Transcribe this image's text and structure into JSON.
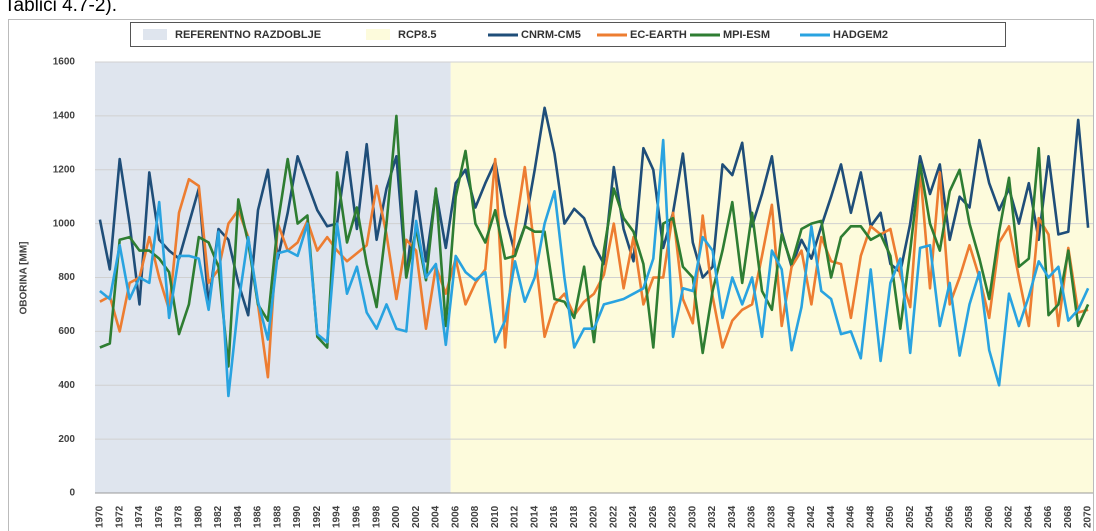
{
  "caption": "Tablici 4.7-2).",
  "chart_data": {
    "type": "line",
    "ylabel": "OBORINA [MM]",
    "ylim": [
      0,
      1600
    ],
    "yticks": [
      0,
      200,
      400,
      600,
      800,
      1000,
      1200,
      1400,
      1600
    ],
    "grid": true,
    "periods": [
      {
        "name": "REFERENTNO RAZDOBLJE",
        "color": "#dfe5ee",
        "span": [
          1970,
          2005
        ]
      },
      {
        "name": "RCP8.5",
        "color": "#fdfbdc",
        "span": [
          2006,
          2070
        ]
      }
    ],
    "categories": [
      "1970",
      null,
      "1972",
      null,
      "1974",
      null,
      "1976",
      null,
      "1978",
      null,
      "1980",
      null,
      "1982",
      null,
      "1984",
      null,
      "1986",
      null,
      "1988",
      null,
      "1990",
      null,
      "1992",
      null,
      "1994",
      null,
      "1996",
      null,
      "1998",
      null,
      "2000",
      null,
      "2002",
      null,
      "2004",
      null,
      "2006",
      null,
      "2008",
      null,
      "2010",
      null,
      "2012",
      null,
      "2014",
      null,
      "2016",
      null,
      "2018",
      null,
      "2020",
      null,
      "2022",
      null,
      "2024",
      null,
      "2026",
      null,
      "2028",
      null,
      "2030",
      null,
      "2032",
      null,
      "2034",
      null,
      "2036",
      null,
      "2038",
      null,
      "2040",
      null,
      "2042",
      null,
      "2044",
      null,
      "2046",
      null,
      "2048",
      null,
      "2050",
      null,
      "2052",
      null,
      "2054",
      null,
      "2056",
      null,
      "2058",
      null,
      "2060",
      null,
      "2062",
      null,
      "2064",
      null,
      "2066",
      null,
      "2068",
      null,
      "2070"
    ],
    "series": [
      {
        "name": "CNRM-CM5",
        "color": "#1f4e79",
        "values": [
          1015,
          830,
          1240,
          1000,
          700,
          1190,
          940,
          900,
          870,
          1000,
          1130,
          700,
          980,
          940,
          780,
          660,
          1050,
          1200,
          870,
          1040,
          1250,
          1150,
          1050,
          990,
          1000,
          1265,
          980,
          1295,
          940,
          1130,
          1250,
          800,
          1120,
          860,
          1120,
          910,
          1150,
          1200,
          1060,
          1150,
          1230,
          1030,
          890,
          990,
          1200,
          1430,
          1260,
          1000,
          1055,
          1020,
          920,
          850,
          1210,
          980,
          860,
          1280,
          1200,
          910,
          1040,
          1260,
          930,
          800,
          840,
          1220,
          1180,
          1300,
          990,
          1110,
          1250,
          970,
          840,
          940,
          870,
          990,
          1100,
          1220,
          1040,
          1190,
          990,
          1040,
          850,
          820,
          1000,
          1250,
          1110,
          1220,
          940,
          1100,
          1060,
          1310,
          1150,
          1050,
          1130,
          1000,
          1150,
          940,
          1250,
          960,
          970,
          1385,
          985
        ]
      },
      {
        "name": "EC-EARTH",
        "color": "#ed7d31",
        "values": [
          710,
          730,
          600,
          780,
          800,
          950,
          800,
          680,
          1040,
          1165,
          1140,
          780,
          830,
          1000,
          1050,
          950,
          700,
          430,
          1000,
          900,
          930,
          1010,
          900,
          950,
          900,
          860,
          890,
          920,
          1140,
          960,
          720,
          940,
          900,
          610,
          840,
          740,
          870,
          700,
          780,
          830,
          1240,
          540,
          970,
          1210,
          900,
          580,
          700,
          740,
          660,
          710,
          740,
          810,
          1000,
          760,
          950,
          700,
          800,
          800,
          1040,
          720,
          630,
          1030,
          730,
          540,
          640,
          680,
          700,
          880,
          1070,
          620,
          840,
          900,
          700,
          950,
          860,
          850,
          650,
          880,
          990,
          960,
          980,
          810,
          690,
          1200,
          760,
          1190,
          700,
          800,
          920,
          800,
          650,
          930,
          990,
          800,
          620,
          1020,
          960,
          620,
          910,
          670,
          680
        ]
      },
      {
        "name": "MPI-ESM",
        "color": "#2e7d32",
        "values": [
          540,
          555,
          940,
          950,
          900,
          900,
          870,
          820,
          590,
          700,
          950,
          930,
          840,
          470,
          1090,
          930,
          700,
          640,
          1000,
          1240,
          1000,
          1030,
          580,
          540,
          1190,
          930,
          1060,
          850,
          690,
          1000,
          1400,
          800,
          980,
          790,
          1130,
          620,
          1100,
          1270,
          1000,
          930,
          1050,
          870,
          880,
          990,
          970,
          970,
          720,
          710,
          650,
          840,
          560,
          900,
          1130,
          1020,
          970,
          850,
          540,
          1000,
          1020,
          840,
          800,
          520,
          750,
          900,
          1080,
          780,
          1040,
          750,
          680,
          960,
          850,
          980,
          1000,
          1010,
          800,
          950,
          990,
          990,
          940,
          960,
          880,
          610,
          900,
          1220,
          1000,
          900,
          1120,
          1200,
          1000,
          870,
          720,
          970,
          1170,
          840,
          870,
          1280,
          660,
          700,
          900,
          620,
          700
        ]
      },
      {
        "name": "HADGEM2",
        "color": "#29a3e0",
        "values": [
          750,
          720,
          920,
          720,
          800,
          780,
          1080,
          650,
          880,
          880,
          870,
          680,
          970,
          360,
          700,
          950,
          710,
          570,
          890,
          900,
          880,
          1000,
          590,
          560,
          1000,
          740,
          840,
          670,
          610,
          700,
          610,
          600,
          1010,
          800,
          850,
          550,
          880,
          820,
          790,
          820,
          560,
          640,
          860,
          710,
          800,
          1000,
          1120,
          800,
          540,
          610,
          610,
          700,
          710,
          720,
          740,
          760,
          870,
          1310,
          580,
          760,
          750,
          950,
          900,
          650,
          800,
          700,
          800,
          580,
          900,
          830,
          530,
          690,
          990,
          750,
          720,
          590,
          600,
          500,
          830,
          490,
          780,
          870,
          520,
          910,
          920,
          620,
          780,
          510,
          700,
          820,
          530,
          400,
          740,
          620,
          730,
          860,
          800,
          840,
          640,
          680,
          760
        ]
      }
    ]
  }
}
